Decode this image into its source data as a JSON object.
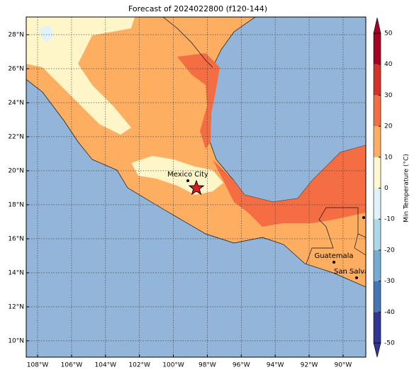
{
  "title": "Forecast of 2024022800 (f120-144)",
  "map": {
    "xlim": [
      -108.67,
      -88.66
    ],
    "ylim": [
      9.04,
      29.04
    ],
    "xticks": [
      {
        "value": -108,
        "label": "108°W"
      },
      {
        "value": -106,
        "label": "106°W"
      },
      {
        "value": -104,
        "label": "104°W"
      },
      {
        "value": -102,
        "label": "102°W"
      },
      {
        "value": -100,
        "label": "100°W"
      },
      {
        "value": -98,
        "label": "98°W"
      },
      {
        "value": -96,
        "label": "96°W"
      },
      {
        "value": -94,
        "label": "94°W"
      },
      {
        "value": -92,
        "label": "92°W"
      },
      {
        "value": -90,
        "label": "90°W"
      }
    ],
    "yticks": [
      {
        "value": 10,
        "label": "10°N"
      },
      {
        "value": 12,
        "label": "12°N"
      },
      {
        "value": 14,
        "label": "14°N"
      },
      {
        "value": 16,
        "label": "16°N"
      },
      {
        "value": 18,
        "label": "18°N"
      },
      {
        "value": 20,
        "label": "20°N"
      },
      {
        "value": 22,
        "label": "22°N"
      },
      {
        "value": 24,
        "label": "24°N"
      },
      {
        "value": 26,
        "label": "26°N"
      },
      {
        "value": 28,
        "label": "28°N"
      }
    ],
    "cities": [
      "Mexico City",
      "Guatemala",
      "San Salvador"
    ]
  },
  "colorbar": {
    "label": "Min Temperature (°C)",
    "ticks": [
      -50,
      -40,
      -30,
      -20,
      -10,
      0,
      10,
      20,
      30,
      40,
      50
    ],
    "colors": [
      "#313695",
      "#4575b4",
      "#74add1",
      "#abd9e9",
      "#e0f3f8",
      "#fef9cf",
      "#fdae61",
      "#f46d43",
      "#d73027",
      "#a50026"
    ]
  }
}
